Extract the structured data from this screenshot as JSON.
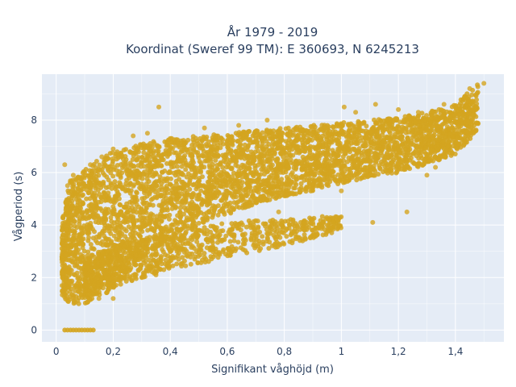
{
  "colors": {
    "marker": "#D4A520",
    "plot_bg": "#E5ECF6",
    "grid": "#FFFFFF",
    "text": "#2A3F5F"
  },
  "chart_data": {
    "type": "scatter",
    "title_line1": "År 1979 - 2019",
    "title_line2": "Koordinat (Sweref 99 TM): E 360693, N 6245213",
    "xlabel": "Signifikant våghöjd (m)",
    "ylabel": "Vågperiod (s)",
    "xlim": [
      -0.05,
      1.57
    ],
    "ylim": [
      -0.45,
      9.75
    ],
    "x_ticks": [
      0,
      0.2,
      0.4,
      0.6,
      0.8,
      1,
      1.2,
      1.4
    ],
    "x_tick_labels": [
      "0",
      "0,2",
      "0,4",
      "0,6",
      "0,8",
      "1",
      "1,2",
      "1,4"
    ],
    "y_ticks": [
      0,
      2,
      4,
      6,
      8
    ],
    "y_tick_labels": [
      "0",
      "2",
      "4",
      "6",
      "8"
    ],
    "grid": true,
    "legend": false,
    "series": [
      {
        "marker_color": "#D4A520",
        "upper_band": [
          {
            "x": 0.02,
            "y_low": 1.3,
            "y_high": 4.3
          },
          {
            "x": 0.05,
            "y_low": 1.0,
            "y_high": 5.7
          },
          {
            "x": 0.1,
            "y_low": 1.0,
            "y_high": 6.2
          },
          {
            "x": 0.2,
            "y_low": 1.5,
            "y_high": 6.8
          },
          {
            "x": 0.3,
            "y_low": 2.8,
            "y_high": 7.1
          },
          {
            "x": 0.4,
            "y_low": 3.5,
            "y_high": 7.3
          },
          {
            "x": 0.5,
            "y_low": 4.0,
            "y_high": 7.4
          },
          {
            "x": 0.6,
            "y_low": 4.4,
            "y_high": 7.5
          },
          {
            "x": 0.7,
            "y_low": 4.8,
            "y_high": 7.6
          },
          {
            "x": 0.8,
            "y_low": 5.1,
            "y_high": 7.7
          },
          {
            "x": 0.9,
            "y_low": 5.3,
            "y_high": 7.8
          },
          {
            "x": 1.0,
            "y_low": 5.6,
            "y_high": 7.9
          },
          {
            "x": 1.1,
            "y_low": 5.8,
            "y_high": 8.0
          },
          {
            "x": 1.2,
            "y_low": 6.0,
            "y_high": 8.1
          },
          {
            "x": 1.3,
            "y_low": 6.3,
            "y_high": 8.3
          },
          {
            "x": 1.4,
            "y_low": 6.7,
            "y_high": 8.6
          },
          {
            "x": 1.48,
            "y_low": 7.6,
            "y_high": 9.4
          }
        ],
        "lower_band": [
          {
            "x": 0.1,
            "y_low": 1.2,
            "y_high": 2.6
          },
          {
            "x": 0.2,
            "y_low": 1.6,
            "y_high": 3.2
          },
          {
            "x": 0.3,
            "y_low": 2.0,
            "y_high": 3.5
          },
          {
            "x": 0.4,
            "y_low": 2.3,
            "y_high": 3.8
          },
          {
            "x": 0.5,
            "y_low": 2.5,
            "y_high": 4.0
          },
          {
            "x": 0.6,
            "y_low": 2.8,
            "y_high": 4.1
          },
          {
            "x": 0.7,
            "y_low": 3.0,
            "y_high": 4.2
          },
          {
            "x": 0.8,
            "y_low": 3.2,
            "y_high": 4.2
          },
          {
            "x": 0.9,
            "y_low": 3.5,
            "y_high": 4.3
          },
          {
            "x": 1.0,
            "y_low": 3.8,
            "y_high": 4.4
          }
        ],
        "zero_points_x": [
          0.03,
          0.04,
          0.05,
          0.06,
          0.07,
          0.08,
          0.09,
          0.1,
          0.11,
          0.12,
          0.13
        ],
        "outliers": [
          {
            "x": 0.36,
            "y": 8.5
          },
          {
            "x": 0.4,
            "y": 7.3
          },
          {
            "x": 0.32,
            "y": 7.5
          },
          {
            "x": 0.27,
            "y": 7.4
          },
          {
            "x": 0.64,
            "y": 7.8
          },
          {
            "x": 0.74,
            "y": 8.0
          },
          {
            "x": 0.52,
            "y": 7.7
          },
          {
            "x": 1.01,
            "y": 8.5
          },
          {
            "x": 1.05,
            "y": 8.3
          },
          {
            "x": 1.12,
            "y": 8.6
          },
          {
            "x": 1.2,
            "y": 8.4
          },
          {
            "x": 1.27,
            "y": 8.3
          },
          {
            "x": 1.36,
            "y": 8.6
          },
          {
            "x": 1.45,
            "y": 9.2
          },
          {
            "x": 1.5,
            "y": 9.4
          },
          {
            "x": 1.23,
            "y": 4.5
          },
          {
            "x": 1.11,
            "y": 4.1
          },
          {
            "x": 0.03,
            "y": 6.3
          },
          {
            "x": 0.04,
            "y": 5.5
          },
          {
            "x": 0.06,
            "y": 5.9
          },
          {
            "x": 0.08,
            "y": 5.6
          },
          {
            "x": 0.1,
            "y": 6.0
          },
          {
            "x": 0.12,
            "y": 6.3
          },
          {
            "x": 0.2,
            "y": 6.9
          },
          {
            "x": 0.16,
            "y": 6.6
          },
          {
            "x": 0.9,
            "y": 4.1
          },
          {
            "x": 0.95,
            "y": 4.0
          },
          {
            "x": 1.0,
            "y": 5.3
          },
          {
            "x": 0.78,
            "y": 4.5
          },
          {
            "x": 0.3,
            "y": 2.0
          },
          {
            "x": 0.35,
            "y": 2.1
          },
          {
            "x": 0.2,
            "y": 1.2
          },
          {
            "x": 0.15,
            "y": 1.2
          },
          {
            "x": 1.3,
            "y": 5.9
          },
          {
            "x": 1.33,
            "y": 6.2
          }
        ]
      }
    ]
  }
}
